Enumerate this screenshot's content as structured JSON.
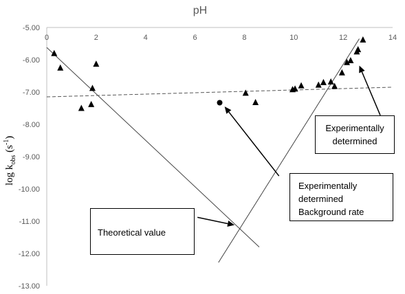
{
  "chart_data": {
    "type": "scatter",
    "title": "pH",
    "xlabel": "",
    "ylabel_main": "log k",
    "ylabel_sub": "obs",
    "ylabel_rest": " (s",
    "ylabel_sup": "-1",
    "ylabel_end": ")",
    "xlim": [
      0,
      14
    ],
    "ylim": [
      -13,
      -5
    ],
    "x_ticks": [
      "0",
      "2",
      "4",
      "6",
      "8",
      "10",
      "12",
      "14"
    ],
    "y_ticks": [
      "-5.00",
      "-6.00",
      "-7.00",
      "-8.00",
      "-9.00",
      "-10.00",
      "-11.00",
      "-12.00",
      "-13.00"
    ],
    "x_axis_position": "top",
    "grid": false,
    "series": [
      {
        "marker": "triangle",
        "points": [
          [
            0.3,
            -5.8
          ],
          [
            0.55,
            -6.25
          ],
          [
            1.4,
            -7.5
          ],
          [
            1.8,
            -7.38
          ],
          [
            1.85,
            -6.88
          ],
          [
            2.0,
            -6.13
          ],
          [
            8.05,
            -7.03
          ],
          [
            8.45,
            -7.32
          ],
          [
            9.95,
            -6.92
          ],
          [
            10.05,
            -6.9
          ],
          [
            10.3,
            -6.8
          ],
          [
            11.0,
            -6.78
          ],
          [
            11.2,
            -6.7
          ],
          [
            11.5,
            -6.68
          ],
          [
            11.65,
            -6.82
          ],
          [
            11.95,
            -6.4
          ],
          [
            12.15,
            -6.08
          ],
          [
            12.3,
            -6.02
          ],
          [
            12.55,
            -5.75
          ],
          [
            12.6,
            -5.68
          ],
          [
            12.8,
            -5.38
          ]
        ]
      },
      {
        "marker": "circle",
        "points": [
          [
            7.0,
            -7.33
          ]
        ]
      }
    ],
    "lines": [
      {
        "style": "solid",
        "from": [
          0,
          -5.62
        ],
        "to": [
          8.6,
          -11.8
        ]
      },
      {
        "style": "solid",
        "from": [
          6.95,
          -12.28
        ],
        "to": [
          12.65,
          -5.35
        ]
      },
      {
        "style": "dashed",
        "from": [
          0,
          -7.15
        ],
        "to": [
          14,
          -6.85
        ]
      }
    ],
    "annotations": [
      {
        "text": "Theoretical value",
        "arrow_from": [
          6.1,
          -10.88
        ],
        "arrow_to": [
          7.6,
          -11.12
        ]
      },
      {
        "text": "Experimentally determined Background rate",
        "arrow_from": [
          9.4,
          -9.6
        ],
        "arrow_to": [
          7.2,
          -7.45
        ]
      },
      {
        "text": "Experimentally determined",
        "arrow_from": [
          13.5,
          -7.72
        ],
        "arrow_to": [
          12.65,
          -6.18
        ]
      }
    ]
  },
  "annotation_text": {
    "theoretical": "Theoretical value",
    "background_line1": "Experimentally",
    "background_line2": "determined",
    "background_line3": "Background rate",
    "experimental_line1": "Experimentally",
    "experimental_line2": "determined"
  }
}
